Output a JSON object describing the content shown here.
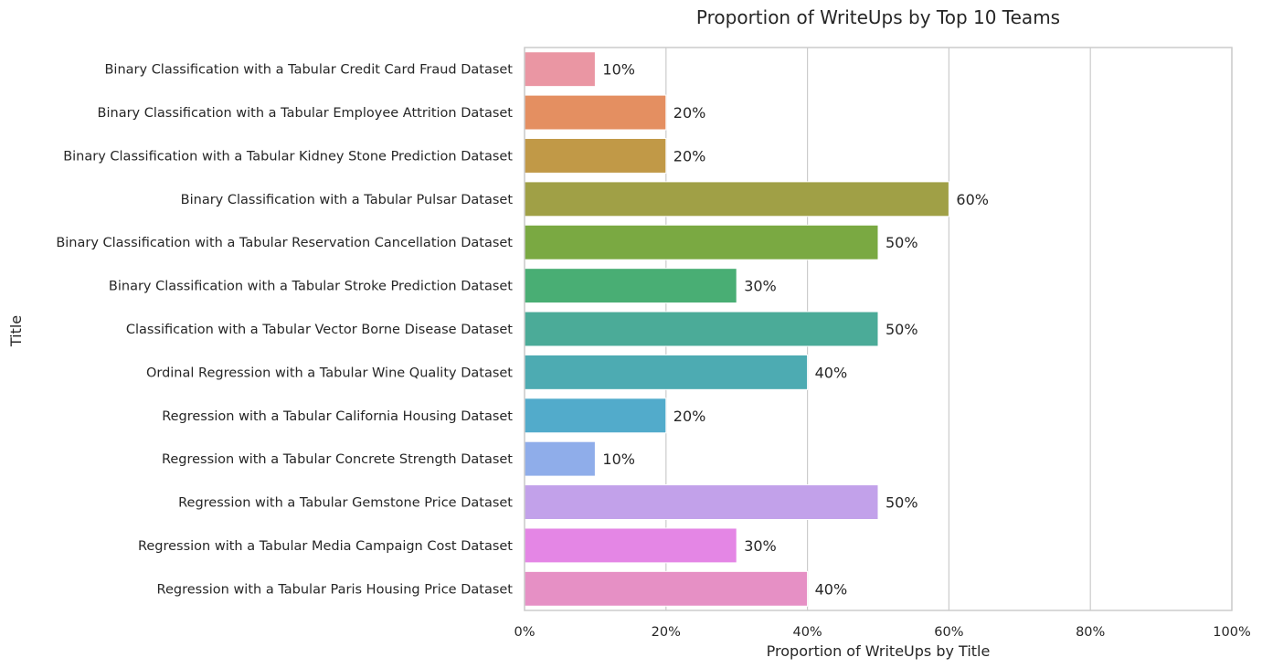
{
  "chart_data": {
    "type": "bar",
    "orientation": "horizontal",
    "title": "Proportion of WriteUps by Top 10 Teams",
    "xlabel": "Proportion of WriteUps by Title",
    "ylabel": "Title",
    "xlim": [
      0,
      1
    ],
    "x_ticks": [
      0,
      0.2,
      0.4,
      0.6,
      0.8,
      1.0
    ],
    "x_tick_labels": [
      "0%",
      "20%",
      "40%",
      "60%",
      "80%",
      "100%"
    ],
    "grid": "vertical",
    "legend": "none",
    "categories": [
      "Binary Classification with a Tabular Credit Card Fraud Dataset",
      "Binary Classification with a Tabular Employee Attrition Dataset",
      "Binary Classification with a Tabular Kidney Stone Prediction Dataset",
      "Binary Classification with a Tabular Pulsar Dataset",
      "Binary Classification with a Tabular Reservation Cancellation Dataset",
      "Binary Classification with a Tabular Stroke Prediction Dataset",
      "Classification with a Tabular Vector Borne Disease Dataset",
      "Ordinal Regression with a Tabular Wine Quality Dataset",
      "Regression with a Tabular California Housing Dataset",
      "Regression with a Tabular Concrete Strength Dataset",
      "Regression with a Tabular Gemstone Price Dataset",
      "Regression with a Tabular Media Campaign Cost Dataset",
      "Regression with a Tabular Paris Housing Price Dataset"
    ],
    "values": [
      0.1,
      0.2,
      0.2,
      0.6,
      0.5,
      0.3,
      0.5,
      0.4,
      0.2,
      0.1,
      0.5,
      0.3,
      0.4
    ],
    "data_labels": [
      "10%",
      "20%",
      "20%",
      "60%",
      "50%",
      "30%",
      "50%",
      "40%",
      "20%",
      "10%",
      "50%",
      "30%",
      "40%"
    ],
    "colors": [
      "#ea96a3",
      "#e48f61",
      "#c19947",
      "#a0a046",
      "#7aa942",
      "#49ae74",
      "#4bab98",
      "#4dabb2",
      "#52abcb",
      "#8fadea",
      "#c2a1ea",
      "#e486e5",
      "#e690c5"
    ]
  }
}
